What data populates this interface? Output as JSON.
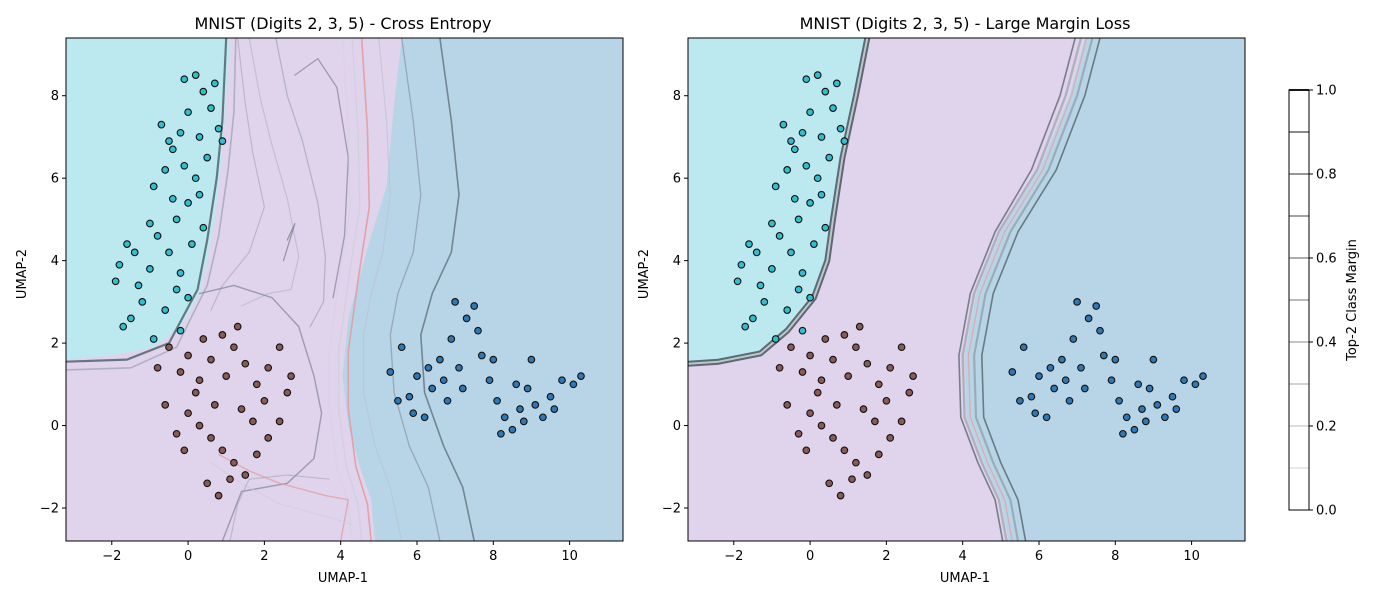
{
  "chart_data": [
    {
      "type": "scatter",
      "title": "MNIST (Digits 2, 3, 5) - Cross Entropy",
      "xlabel": "UMAP-1",
      "ylabel": "UMAP-2",
      "xlim": [
        -3.2,
        11.4
      ],
      "ylim": [
        -2.8,
        9.4
      ],
      "xticks": [
        "−2",
        "0",
        "2",
        "4",
        "6",
        "8",
        "10"
      ],
      "yticks": [
        "−2",
        "0",
        "2",
        "4",
        "6",
        "8"
      ],
      "xtick_values": [
        -2,
        0,
        2,
        4,
        6,
        8,
        10
      ],
      "ytick_values": [
        -2,
        0,
        2,
        4,
        6,
        8
      ],
      "grid": false,
      "region_colors": {
        "class_a": "#bbe9ef",
        "class_b": "#e0d3ec",
        "class_c": "#b8d5e8"
      },
      "series": [
        {
          "color": "#2fbfce",
          "points": [
            [
              -1.8,
              3.9
            ],
            [
              -1.6,
              4.4
            ],
            [
              -1.4,
              4.2
            ],
            [
              -1.0,
              3.8
            ],
            [
              -0.8,
              4.6
            ],
            [
              -0.5,
              4.2
            ],
            [
              -0.2,
              3.7
            ],
            [
              -1.2,
              3.0
            ],
            [
              -1.5,
              2.6
            ],
            [
              -1.7,
              2.4
            ],
            [
              -0.9,
              2.1
            ],
            [
              -0.6,
              2.8
            ],
            [
              -0.3,
              3.3
            ],
            [
              -0.9,
              5.8
            ],
            [
              -0.6,
              6.2
            ],
            [
              -0.4,
              6.7
            ],
            [
              -0.2,
              7.1
            ],
            [
              0.0,
              7.6
            ],
            [
              -0.1,
              8.4
            ],
            [
              0.2,
              8.5
            ],
            [
              0.4,
              8.1
            ],
            [
              0.6,
              7.7
            ],
            [
              0.8,
              7.2
            ],
            [
              0.9,
              6.9
            ],
            [
              0.5,
              6.5
            ],
            [
              0.2,
              6.0
            ],
            [
              0.0,
              5.4
            ],
            [
              -0.3,
              5.0
            ],
            [
              0.4,
              4.8
            ],
            [
              0.1,
              4.4
            ],
            [
              -0.5,
              6.9
            ],
            [
              -0.7,
              7.3
            ],
            [
              0.3,
              7.0
            ],
            [
              -0.1,
              6.3
            ],
            [
              0.7,
              8.3
            ],
            [
              -1.9,
              3.5
            ],
            [
              -1.3,
              3.4
            ],
            [
              -0.2,
              2.3
            ],
            [
              0.0,
              3.1
            ],
            [
              0.3,
              5.6
            ],
            [
              -1.0,
              4.9
            ],
            [
              -0.4,
              5.5
            ]
          ]
        },
        {
          "color": "#8a5a54",
          "points": [
            [
              -0.8,
              1.4
            ],
            [
              -0.5,
              1.9
            ],
            [
              -0.2,
              1.3
            ],
            [
              0.0,
              1.7
            ],
            [
              0.3,
              1.1
            ],
            [
              0.6,
              1.6
            ],
            [
              0.9,
              2.2
            ],
            [
              1.2,
              1.9
            ],
            [
              1.5,
              1.5
            ],
            [
              1.8,
              1.0
            ],
            [
              2.1,
              1.4
            ],
            [
              2.4,
              1.9
            ],
            [
              2.7,
              1.2
            ],
            [
              0.0,
              0.3
            ],
            [
              0.3,
              0.0
            ],
            [
              0.6,
              -0.3
            ],
            [
              0.9,
              -0.6
            ],
            [
              1.2,
              -0.9
            ],
            [
              1.5,
              -1.2
            ],
            [
              1.8,
              -0.7
            ],
            [
              2.1,
              -0.3
            ],
            [
              2.4,
              0.1
            ],
            [
              0.5,
              -1.4
            ],
            [
              0.8,
              -1.7
            ],
            [
              1.1,
              -1.3
            ],
            [
              -0.6,
              0.5
            ],
            [
              -0.3,
              -0.2
            ],
            [
              1.4,
              0.4
            ],
            [
              1.7,
              0.1
            ],
            [
              2.0,
              0.6
            ],
            [
              0.2,
              0.8
            ],
            [
              0.7,
              0.5
            ],
            [
              1.0,
              1.2
            ],
            [
              -0.1,
              -0.6
            ],
            [
              2.6,
              0.8
            ],
            [
              1.3,
              2.4
            ],
            [
              0.4,
              2.1
            ]
          ]
        },
        {
          "color": "#2f78b5",
          "points": [
            [
              5.3,
              1.3
            ],
            [
              5.6,
              1.9
            ],
            [
              5.8,
              0.7
            ],
            [
              6.0,
              1.2
            ],
            [
              6.2,
              0.2
            ],
            [
              6.4,
              0.9
            ],
            [
              6.6,
              1.6
            ],
            [
              6.9,
              2.1
            ],
            [
              7.1,
              1.4
            ],
            [
              7.3,
              2.6
            ],
            [
              7.5,
              2.9
            ],
            [
              7.7,
              1.7
            ],
            [
              7.9,
              1.1
            ],
            [
              8.1,
              0.6
            ],
            [
              8.3,
              0.2
            ],
            [
              8.5,
              -0.1
            ],
            [
              8.7,
              0.4
            ],
            [
              8.9,
              0.9
            ],
            [
              9.1,
              0.5
            ],
            [
              9.3,
              0.2
            ],
            [
              9.5,
              0.7
            ],
            [
              9.8,
              1.1
            ],
            [
              10.1,
              1.0
            ],
            [
              10.3,
              1.2
            ],
            [
              6.8,
              0.6
            ],
            [
              7.2,
              0.9
            ],
            [
              8.0,
              1.6
            ],
            [
              8.6,
              1.0
            ],
            [
              5.9,
              0.3
            ],
            [
              6.3,
              1.4
            ],
            [
              7.6,
              2.3
            ],
            [
              9.0,
              1.6
            ],
            [
              5.5,
              0.6
            ],
            [
              6.7,
              1.1
            ],
            [
              8.8,
              0.1
            ],
            [
              9.6,
              0.4
            ],
            [
              7.0,
              3.0
            ],
            [
              8.2,
              -0.2
            ]
          ]
        }
      ]
    },
    {
      "type": "scatter",
      "title": "MNIST (Digits 2, 3, 5) - Large Margin Loss",
      "xlabel": "UMAP-1",
      "ylabel": "UMAP-2",
      "xlim": [
        -3.2,
        11.4
      ],
      "ylim": [
        -2.8,
        9.4
      ],
      "xticks": [
        "−2",
        "0",
        "2",
        "4",
        "6",
        "8",
        "10"
      ],
      "yticks": [
        "−2",
        "0",
        "2",
        "4",
        "6",
        "8"
      ],
      "xtick_values": [
        -2,
        0,
        2,
        4,
        6,
        8,
        10
      ],
      "ytick_values": [
        -2,
        0,
        2,
        4,
        6,
        8
      ],
      "grid": false,
      "region_colors": {
        "class_a": "#bbe9ef",
        "class_b": "#e0d3ec",
        "class_c": "#b8d5e8"
      }
    }
  ],
  "colorbar": {
    "label": "Top-2 Class Margin",
    "ticks": [
      "0.0",
      "0.2",
      "0.4",
      "0.6",
      "0.8",
      "1.0"
    ],
    "tick_values": [
      0.0,
      0.2,
      0.4,
      0.6,
      0.8,
      1.0
    ],
    "range": [
      0,
      1
    ],
    "levels": [
      0.1,
      0.2,
      0.3,
      0.4,
      0.5,
      0.6,
      0.7,
      0.8,
      0.9,
      1.0
    ]
  }
}
